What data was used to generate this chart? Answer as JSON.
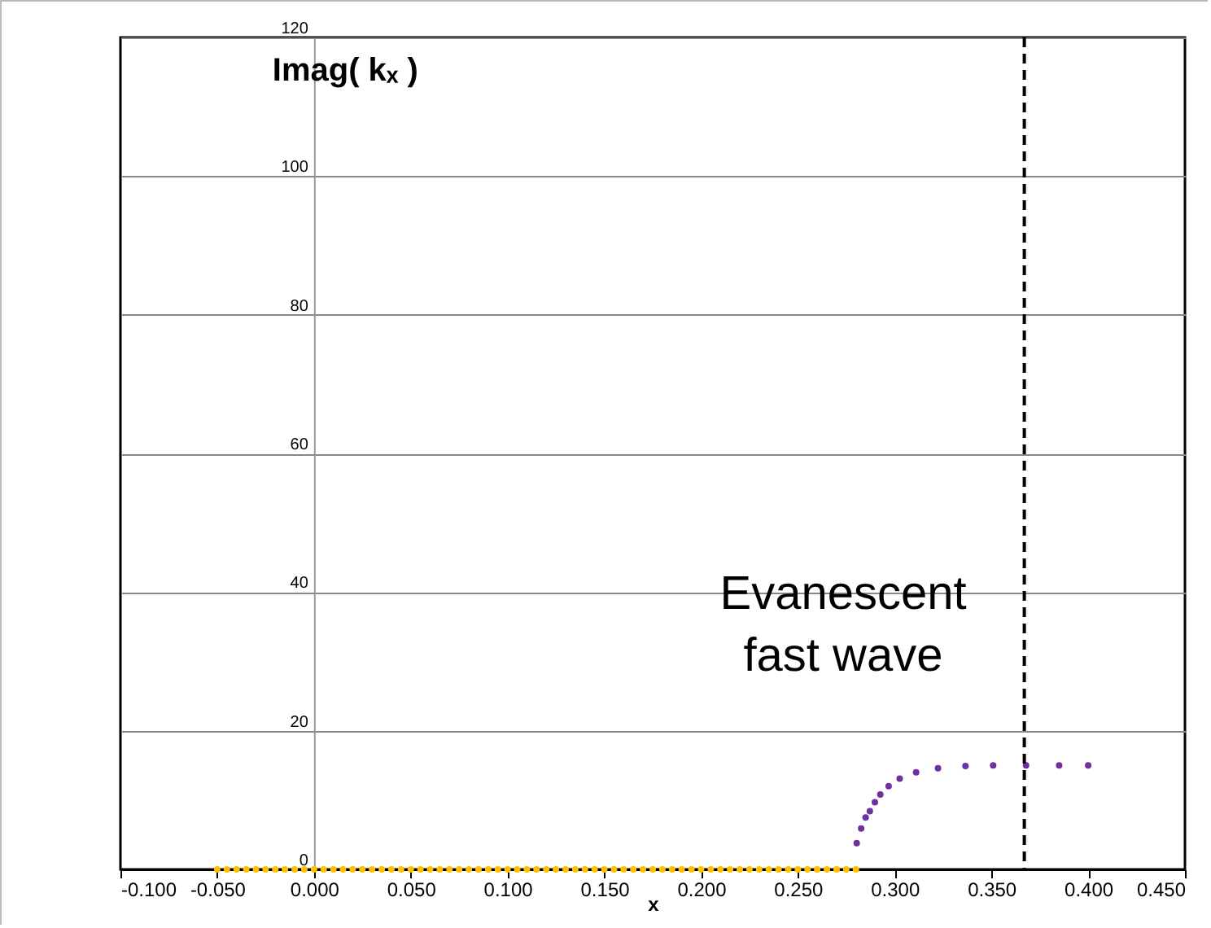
{
  "chart_data": {
    "type": "scatter",
    "xlabel": "x",
    "ylabel": "Imag( kₓ )",
    "xlim": [
      -0.1,
      0.45
    ],
    "ylim": [
      0,
      120
    ],
    "xticks": [
      {
        "value": -0.1,
        "label": "-0.100"
      },
      {
        "value": -0.05,
        "label": "-0.050"
      },
      {
        "value": 0,
        "label": "0.000"
      },
      {
        "value": 0.05,
        "label": "0.050"
      },
      {
        "value": 0.1,
        "label": "0.100"
      },
      {
        "value": 0.15,
        "label": "0.150"
      },
      {
        "value": 0.2,
        "label": "0.200"
      },
      {
        "value": 0.25,
        "label": "0.250"
      },
      {
        "value": 0.3,
        "label": "0.300"
      },
      {
        "value": 0.35,
        "label": "0.350"
      },
      {
        "value": 0.4,
        "label": "0.400"
      },
      {
        "value": 0.45,
        "label": "0.450"
      }
    ],
    "yticks": [
      0,
      20,
      40,
      60,
      80,
      100,
      120
    ],
    "grid": "y",
    "legend": false,
    "marker": "circle",
    "series": [
      {
        "color": "#ffc000",
        "x": [
          -0.05,
          -0.045,
          -0.04,
          -0.035,
          -0.03,
          -0.025,
          -0.02,
          -0.015,
          -0.01,
          -0.005,
          0,
          0.005,
          0.01,
          0.015,
          0.02,
          0.025,
          0.03,
          0.035,
          0.04,
          0.045,
          0.05,
          0.055,
          0.06,
          0.065,
          0.07,
          0.075,
          0.08,
          0.085,
          0.09,
          0.095,
          0.1,
          0.105,
          0.11,
          0.115,
          0.12,
          0.125,
          0.13,
          0.135,
          0.14,
          0.145,
          0.15,
          0.155,
          0.16,
          0.165,
          0.17,
          0.175,
          0.18,
          0.185,
          0.19,
          0.195,
          0.2,
          0.205,
          0.21,
          0.215,
          0.22,
          0.225,
          0.23,
          0.235,
          0.24,
          0.245,
          0.25,
          0.255,
          0.26,
          0.265,
          0.27,
          0.275,
          0.28
        ],
        "values": [
          0,
          0,
          0,
          0,
          0,
          0,
          0,
          0,
          0,
          0,
          0,
          0,
          0,
          0,
          0,
          0,
          0,
          0,
          0,
          0,
          0,
          0,
          0,
          0,
          0,
          0,
          0,
          0,
          0,
          0,
          0,
          0,
          0,
          0,
          0,
          0,
          0,
          0,
          0,
          0,
          0,
          0,
          0,
          0,
          0,
          0,
          0,
          0,
          0,
          0,
          0,
          0,
          0,
          0,
          0,
          0,
          0,
          0,
          0,
          0,
          0,
          0,
          0,
          0,
          0,
          0,
          0
        ]
      },
      {
        "color": "#7030a0",
        "x": [
          0.2804,
          0.2827,
          0.285,
          0.2872,
          0.2898,
          0.2926,
          0.2969,
          0.3026,
          0.3111,
          0.3224,
          0.3366,
          0.3509,
          0.3679,
          0.385,
          0.4
        ],
        "values": [
          3.8,
          5.9,
          7.5,
          8.4,
          9.7,
          10.8,
          12.0,
          13.1,
          14.0,
          14.6,
          14.9,
          15.0,
          15.0,
          15.0,
          15.0
        ]
      }
    ],
    "ref_lines": [
      {
        "axis": "x",
        "value": 0.367,
        "color": "#000000",
        "line_style": "dashed"
      }
    ],
    "annotations": [
      "Evanescent\nfast wave"
    ]
  }
}
